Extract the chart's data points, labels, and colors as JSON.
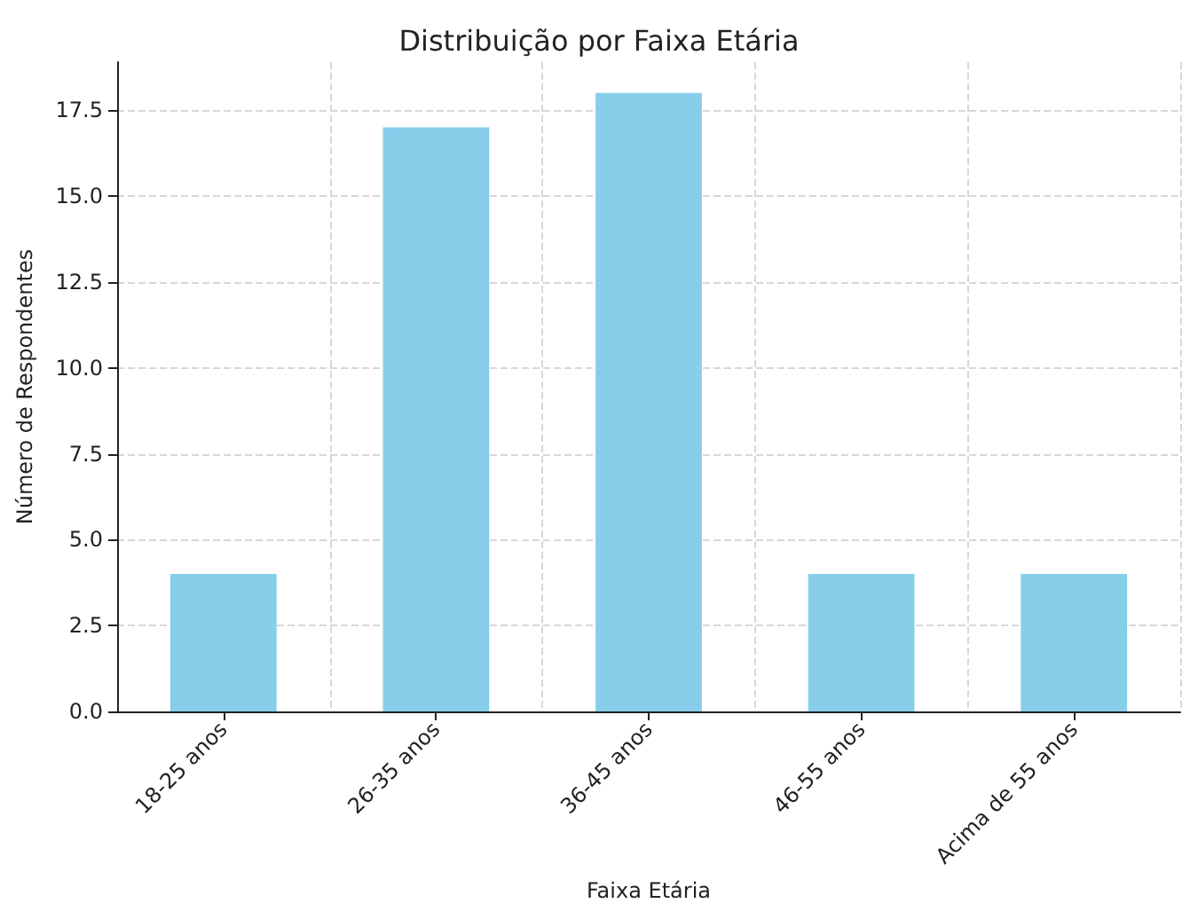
{
  "chart_data": {
    "type": "bar",
    "title": "Distribuição por Faixa Etária",
    "xlabel": "Faixa Etária",
    "ylabel": "Número de Respondentes",
    "categories": [
      "18-25 anos",
      "26-35 anos",
      "36-45 anos",
      "46-55 anos",
      "Acima de 55 anos"
    ],
    "values": [
      4,
      17,
      18,
      4,
      4
    ],
    "color": "#87ceeb",
    "ylim": [
      0,
      18.9
    ],
    "yticks": [
      {
        "value": 0,
        "label": "0.0"
      },
      {
        "value": 2.5,
        "label": "2.5"
      },
      {
        "value": 5,
        "label": "5.0"
      },
      {
        "value": 7.5,
        "label": "7.5"
      },
      {
        "value": 10,
        "label": "10.0"
      },
      {
        "value": 12.5,
        "label": "12.5"
      },
      {
        "value": 15,
        "label": "15.0"
      },
      {
        "value": 17.5,
        "label": "17.5"
      }
    ],
    "grid": true
  }
}
